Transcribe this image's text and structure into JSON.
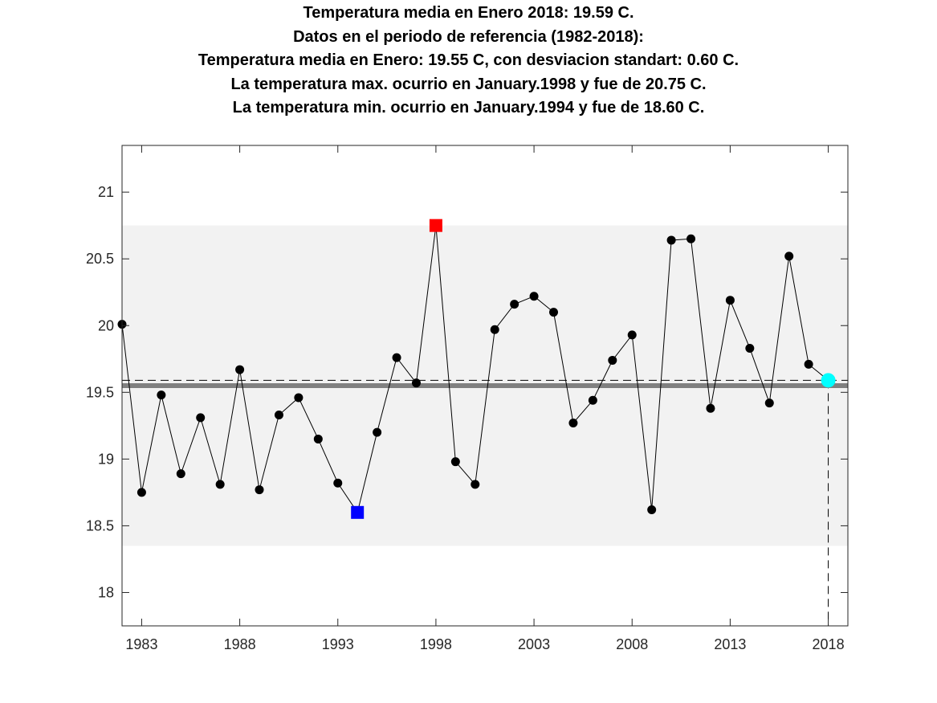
{
  "title_lines": [
    "Temperatura media en Enero 2018: 19.59 C.",
    "Datos en el periodo de referencia (1982-2018):",
    "Temperatura media en Enero: 19.55 C, con desviacion standart: 0.60 C.",
    "La temperatura max. ocurrio en January.1998 y fue de 20.75 C.",
    "La temperatura min. ocurrio en January.1994 y fue de 18.60 C."
  ],
  "chart_data": {
    "type": "line",
    "xlim": [
      1982,
      2019
    ],
    "ylim": [
      17.75,
      21.35
    ],
    "xticks": [
      1983,
      1988,
      1993,
      1998,
      2003,
      2008,
      2013,
      2018
    ],
    "yticks": [
      18,
      18.5,
      19,
      19.5,
      20,
      20.5,
      21
    ],
    "ytick_labels": [
      "18",
      "18.5",
      "19",
      "19.5",
      "20",
      "20.5",
      "21"
    ],
    "grid": false,
    "mean": 19.55,
    "mean_color": "#808080",
    "band": [
      18.35,
      20.75
    ],
    "band_color": "#f2f2f2",
    "current_value_line": 19.59,
    "series": [
      {
        "x": [
          1982,
          1983,
          1984,
          1985,
          1986,
          1987,
          1988,
          1989,
          1990,
          1991,
          1992,
          1993,
          1994,
          1995,
          1996,
          1997,
          1998,
          1999,
          2000,
          2001,
          2002,
          2003,
          2004,
          2005,
          2006,
          2007,
          2008,
          2009,
          2010,
          2011,
          2012,
          2013,
          2014,
          2015,
          2016,
          2017,
          2018
        ],
        "values": [
          20.01,
          18.75,
          19.48,
          18.89,
          19.31,
          18.81,
          19.67,
          18.77,
          19.33,
          19.46,
          19.15,
          18.82,
          18.6,
          19.2,
          19.76,
          19.57,
          20.75,
          18.98,
          18.81,
          19.97,
          20.16,
          20.22,
          20.1,
          19.27,
          19.44,
          19.74,
          19.93,
          18.62,
          20.64,
          20.65,
          19.38,
          20.19,
          19.83,
          19.42,
          20.52,
          19.71,
          19.59
        ],
        "color": "#000000"
      }
    ],
    "highlights": [
      {
        "label": "max",
        "x": 1998,
        "y": 20.75,
        "color": "#ff0000",
        "marker": "square"
      },
      {
        "label": "min",
        "x": 1994,
        "y": 18.6,
        "color": "#0000ff",
        "marker": "square"
      },
      {
        "label": "current",
        "x": 2018,
        "y": 19.59,
        "color": "#00ffff",
        "marker": "circle"
      }
    ]
  }
}
